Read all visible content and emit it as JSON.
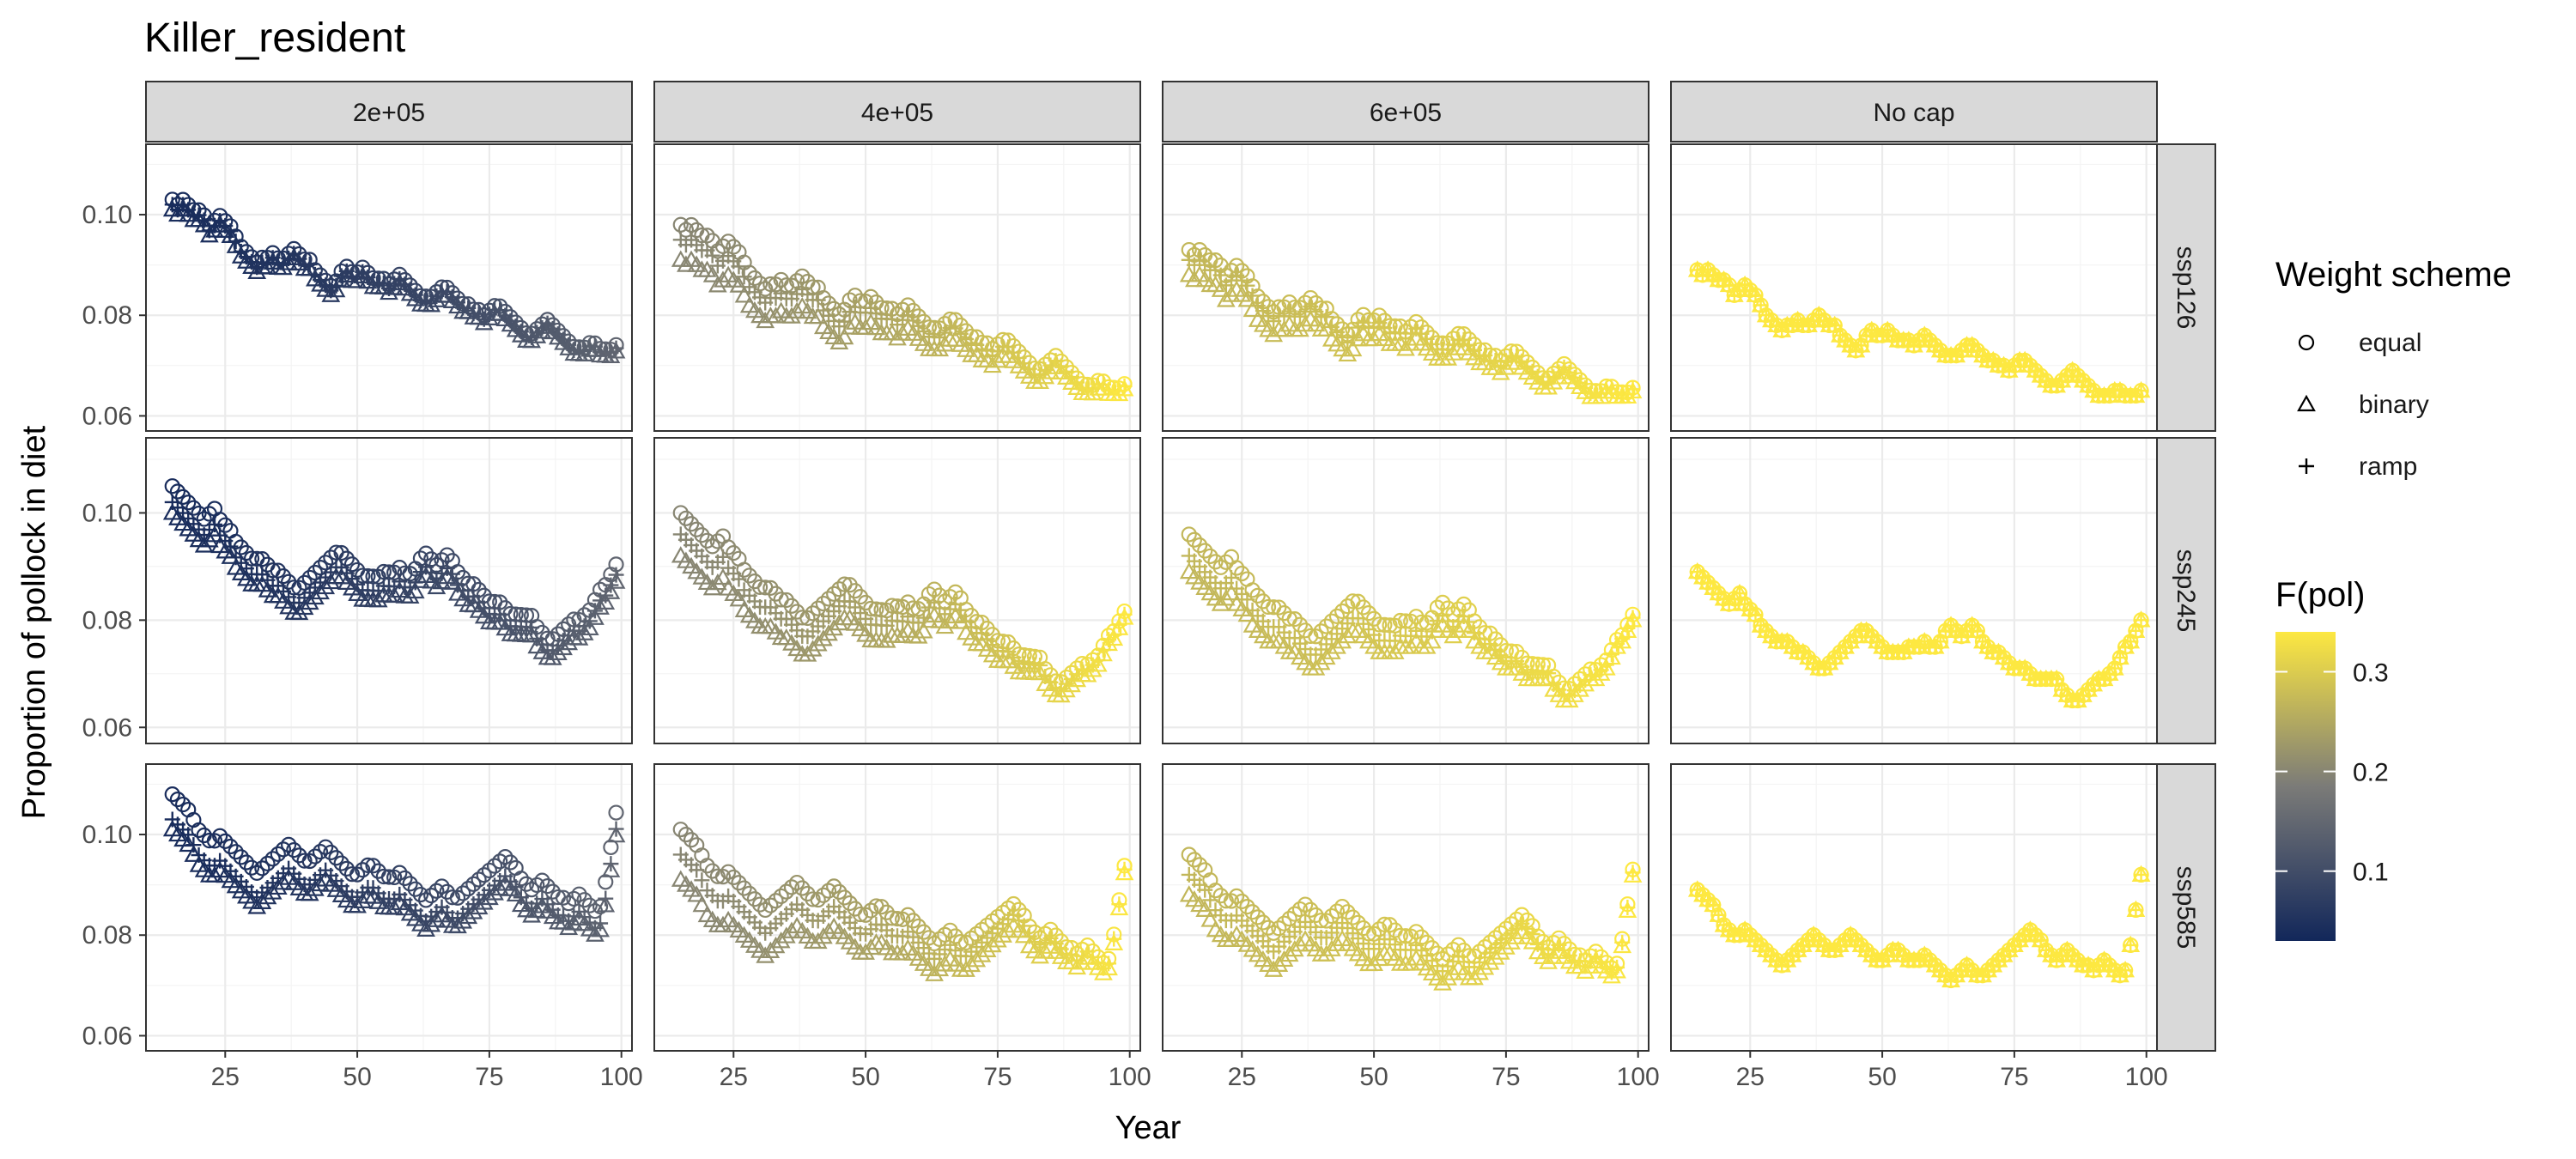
{
  "chart_data": {
    "type": "scatter",
    "title": "Killer_resident",
    "xlabel": "Year",
    "ylabel": "Proportion of pollock in diet",
    "xlim": [
      10,
      102
    ],
    "ylim": [
      0.057,
      0.114
    ],
    "x_ticks": [
      25,
      50,
      75,
      100
    ],
    "y_ticks": [
      0.06,
      0.08,
      0.1
    ],
    "y_tick_labels": [
      "0.06",
      "0.08",
      "0.10"
    ],
    "grid": true,
    "facet_columns": [
      "2e+05",
      "4e+05",
      "6e+05",
      "No cap"
    ],
    "facet_rows": [
      "ssp126",
      "ssp245",
      "ssp585"
    ],
    "shape_legend": {
      "title": "Weight scheme",
      "entries": [
        "equal",
        "binary",
        "ramp"
      ],
      "position": "right"
    },
    "color_legend": {
      "title": "F(pol)",
      "breaks": [
        0.1,
        0.2,
        0.3
      ],
      "break_labels": [
        "0.1",
        "0.2",
        "0.3"
      ],
      "range": [
        0.03,
        0.34
      ],
      "low_color": "#12275a",
      "mid_color": "#7b7b78",
      "high_color": "#fde841",
      "position": "right"
    },
    "cap_fpol": [
      0.04,
      0.2,
      0.27,
      0.34
    ],
    "x_start": 15,
    "x_end": 99,
    "series": [
      {
        "scenario": "ssp126",
        "values": [
          0.089,
          0.088,
          0.089,
          0.088,
          0.087,
          0.087,
          0.086,
          0.084,
          0.085,
          0.086,
          0.085,
          0.084,
          0.082,
          0.08,
          0.079,
          0.078,
          0.077,
          0.078,
          0.078,
          0.079,
          0.078,
          0.078,
          0.079,
          0.08,
          0.079,
          0.078,
          0.078,
          0.076,
          0.075,
          0.074,
          0.073,
          0.074,
          0.076,
          0.077,
          0.076,
          0.076,
          0.077,
          0.076,
          0.075,
          0.075,
          0.075,
          0.074,
          0.075,
          0.076,
          0.075,
          0.074,
          0.073,
          0.072,
          0.072,
          0.072,
          0.073,
          0.074,
          0.074,
          0.073,
          0.072,
          0.071,
          0.071,
          0.07,
          0.07,
          0.069,
          0.07,
          0.071,
          0.071,
          0.07,
          0.069,
          0.068,
          0.067,
          0.066,
          0.066,
          0.067,
          0.068,
          0.069,
          0.068,
          0.067,
          0.066,
          0.065,
          0.064,
          0.064,
          0.064,
          0.065,
          0.065,
          0.064,
          0.064,
          0.064,
          0.065
        ]
      },
      {
        "scenario": "ssp245",
        "values": [
          0.089,
          0.088,
          0.087,
          0.086,
          0.085,
          0.084,
          0.083,
          0.084,
          0.085,
          0.083,
          0.082,
          0.081,
          0.079,
          0.078,
          0.077,
          0.076,
          0.076,
          0.076,
          0.075,
          0.074,
          0.074,
          0.073,
          0.072,
          0.071,
          0.071,
          0.072,
          0.073,
          0.074,
          0.075,
          0.076,
          0.077,
          0.078,
          0.078,
          0.077,
          0.076,
          0.075,
          0.074,
          0.074,
          0.074,
          0.074,
          0.075,
          0.075,
          0.075,
          0.076,
          0.075,
          0.075,
          0.076,
          0.078,
          0.079,
          0.078,
          0.077,
          0.078,
          0.079,
          0.078,
          0.076,
          0.075,
          0.074,
          0.074,
          0.073,
          0.072,
          0.071,
          0.071,
          0.071,
          0.07,
          0.069,
          0.069,
          0.069,
          0.069,
          0.069,
          0.067,
          0.066,
          0.065,
          0.065,
          0.066,
          0.067,
          0.068,
          0.069,
          0.069,
          0.07,
          0.071,
          0.073,
          0.075,
          0.076,
          0.078,
          0.08
        ]
      },
      {
        "scenario": "ssp585",
        "values": [
          0.089,
          0.088,
          0.087,
          0.086,
          0.084,
          0.082,
          0.081,
          0.08,
          0.08,
          0.081,
          0.08,
          0.079,
          0.078,
          0.077,
          0.076,
          0.075,
          0.074,
          0.075,
          0.076,
          0.077,
          0.078,
          0.079,
          0.08,
          0.079,
          0.078,
          0.077,
          0.077,
          0.078,
          0.079,
          0.08,
          0.079,
          0.078,
          0.077,
          0.076,
          0.075,
          0.075,
          0.076,
          0.077,
          0.077,
          0.076,
          0.075,
          0.075,
          0.075,
          0.076,
          0.075,
          0.074,
          0.073,
          0.072,
          0.071,
          0.072,
          0.073,
          0.074,
          0.073,
          0.072,
          0.072,
          0.073,
          0.074,
          0.075,
          0.076,
          0.077,
          0.078,
          0.079,
          0.08,
          0.081,
          0.08,
          0.079,
          0.077,
          0.076,
          0.075,
          0.076,
          0.077,
          0.076,
          0.075,
          0.074,
          0.074,
          0.073,
          0.074,
          0.075,
          0.074,
          0.073,
          0.072,
          0.073,
          0.078,
          0.085,
          0.092
        ]
      }
    ],
    "scheme_offsets": {
      "ssp126": {
        "equal": [
          0.014,
          0.009,
          0.004,
          0.0
        ],
        "ramp": [
          0.013,
          0.006,
          0.002,
          0.0
        ],
        "binary": [
          0.012,
          0.002,
          -0.001,
          0.0
        ]
      },
      "ssp245": {
        "equal": [
          0.016,
          0.011,
          0.007,
          0.0
        ],
        "ramp": [
          0.013,
          0.007,
          0.003,
          0.0
        ],
        "binary": [
          0.011,
          0.003,
          0.0,
          0.0
        ]
      },
      "ssp585": {
        "equal": [
          0.019,
          0.012,
          0.007,
          0.0
        ],
        "ramp": [
          0.014,
          0.007,
          0.003,
          0.0
        ],
        "binary": [
          0.012,
          0.002,
          -0.001,
          0.0
        ]
      }
    }
  }
}
